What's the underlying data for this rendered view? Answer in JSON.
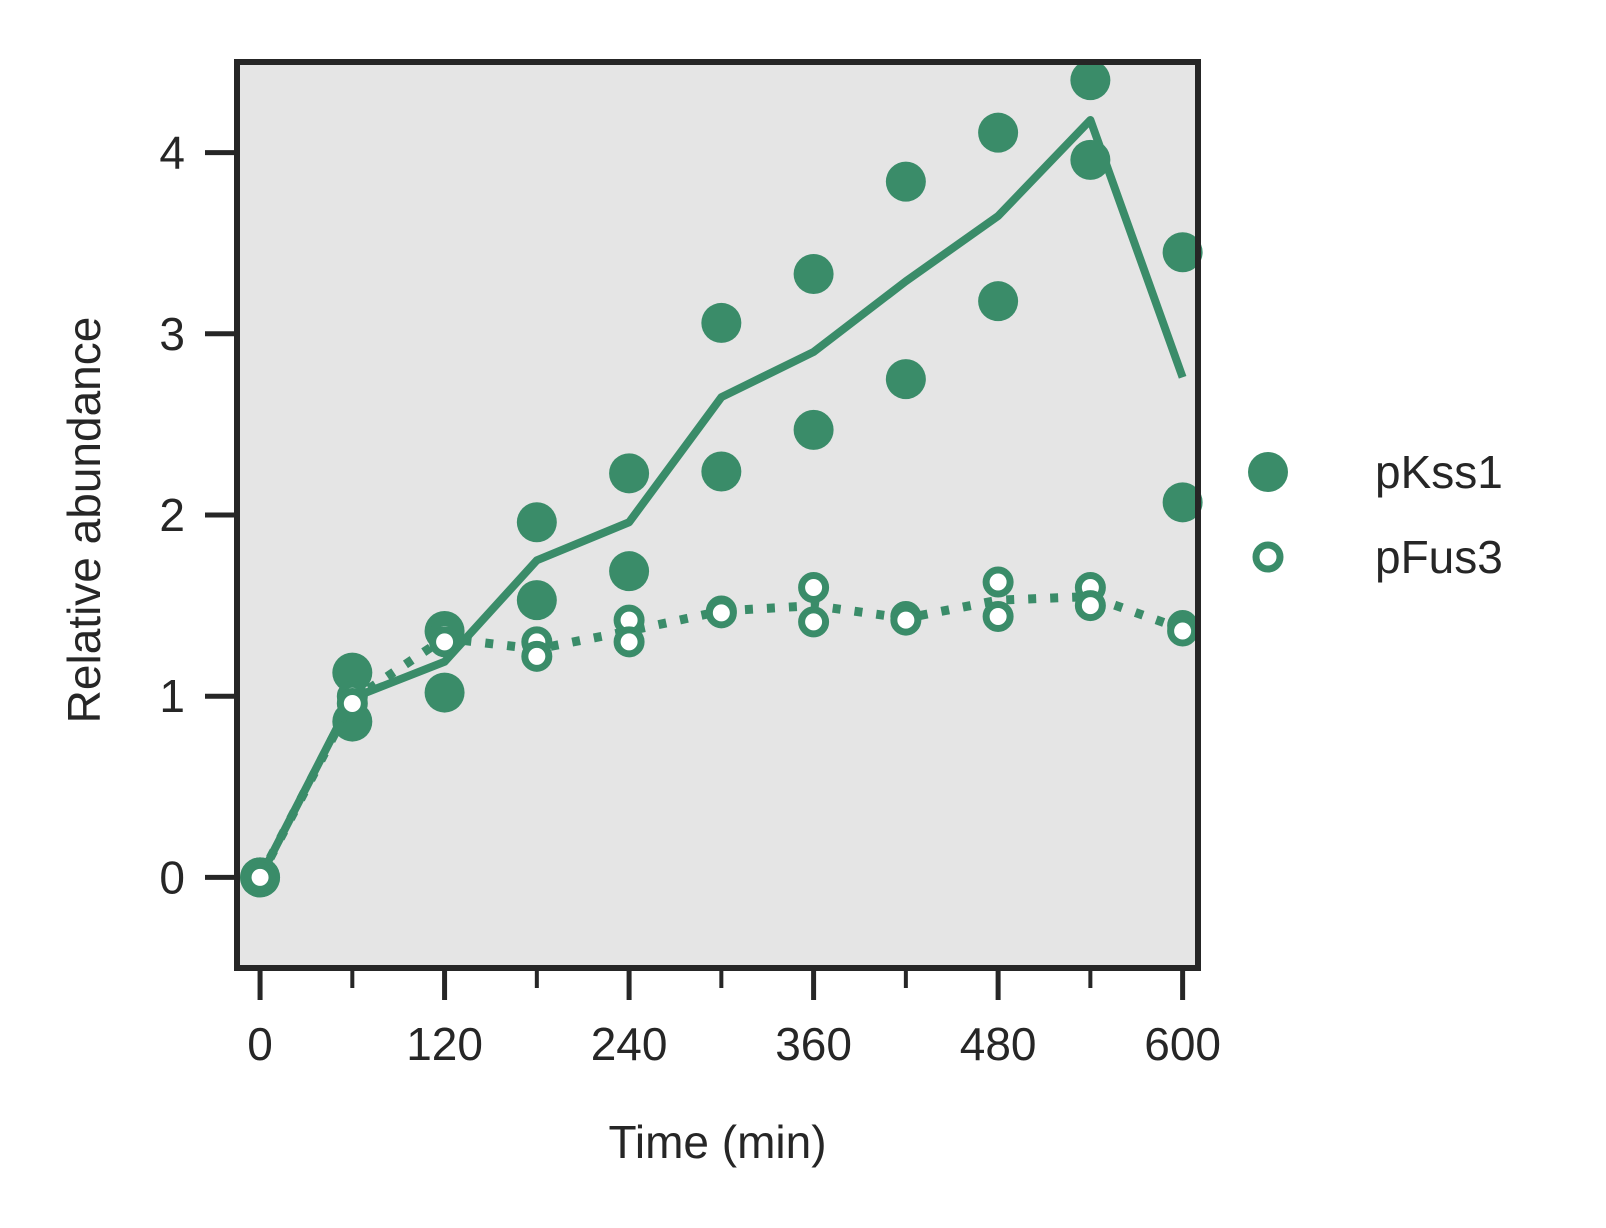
{
  "chart_data": {
    "type": "line",
    "xlabel": "Time (min)",
    "ylabel": "Relative abundance",
    "xlim": [
      -15,
      610
    ],
    "ylim": [
      -0.5,
      4.5
    ],
    "xticks": [
      0,
      60,
      120,
      180,
      240,
      300,
      360,
      420,
      480,
      540,
      600
    ],
    "xtick_labels": [
      "0",
      "",
      "120",
      "",
      "240",
      "",
      "360",
      "",
      "480",
      "",
      "600"
    ],
    "yticks": [
      0,
      1,
      2,
      3,
      4
    ],
    "ytick_labels": [
      "0",
      "1",
      "2",
      "3",
      "4"
    ],
    "grid": false,
    "background": "#e5e5e5",
    "color": "#3a8c69",
    "legend_position": "right",
    "series": [
      {
        "name": "pKss1",
        "marker": "filled-circle",
        "line_style": "solid",
        "points": [
          [
            0,
            0.0
          ],
          [
            0,
            0.0
          ],
          [
            60,
            1.13
          ],
          [
            60,
            0.86
          ],
          [
            120,
            1.36
          ],
          [
            120,
            1.02
          ],
          [
            180,
            1.96
          ],
          [
            180,
            1.53
          ],
          [
            240,
            2.23
          ],
          [
            240,
            1.69
          ],
          [
            300,
            3.06
          ],
          [
            300,
            2.24
          ],
          [
            360,
            3.33
          ],
          [
            360,
            2.47
          ],
          [
            420,
            3.84
          ],
          [
            420,
            2.75
          ],
          [
            480,
            4.11
          ],
          [
            480,
            3.18
          ],
          [
            540,
            4.4
          ],
          [
            540,
            3.96
          ],
          [
            600,
            3.45
          ],
          [
            600,
            2.07
          ]
        ],
        "mean_x": [
          0,
          60,
          120,
          180,
          240,
          300,
          360,
          420,
          480,
          540,
          600
        ],
        "mean_y": [
          0.0,
          0.99,
          1.19,
          1.75,
          1.96,
          2.65,
          2.9,
          3.29,
          3.65,
          4.18,
          2.76
        ]
      },
      {
        "name": "pFus3",
        "marker": "open-circle",
        "line_style": "dotted",
        "points": [
          [
            0,
            0.0
          ],
          [
            0,
            0.0
          ],
          [
            60,
            1.0
          ],
          [
            60,
            0.96
          ],
          [
            120,
            1.34
          ],
          [
            120,
            1.3
          ],
          [
            180,
            1.3
          ],
          [
            180,
            1.22
          ],
          [
            240,
            1.42
          ],
          [
            240,
            1.3
          ],
          [
            300,
            1.47
          ],
          [
            300,
            1.46
          ],
          [
            360,
            1.6
          ],
          [
            360,
            1.41
          ],
          [
            420,
            1.44
          ],
          [
            420,
            1.42
          ],
          [
            480,
            1.63
          ],
          [
            480,
            1.44
          ],
          [
            540,
            1.6
          ],
          [
            540,
            1.5
          ],
          [
            600,
            1.39
          ],
          [
            600,
            1.36
          ]
        ],
        "mean_x": [
          0,
          60,
          120,
          180,
          240,
          300,
          360,
          420,
          480,
          540,
          600
        ],
        "mean_y": [
          0.0,
          0.98,
          1.32,
          1.26,
          1.36,
          1.47,
          1.5,
          1.43,
          1.53,
          1.55,
          1.37
        ]
      }
    ]
  }
}
